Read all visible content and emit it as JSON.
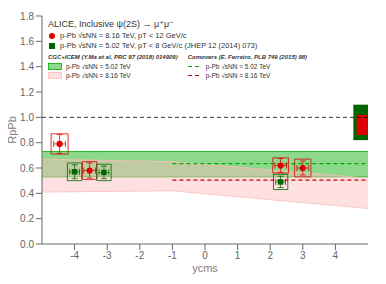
{
  "chart_data": {
    "type": "scatter",
    "title": "ALICE, Inclusive ψ(2S) → μ⁺μ⁻",
    "x_label": "ycms",
    "y_label": "RpPb",
    "xlim": [
      -5,
      5
    ],
    "ylim": [
      0,
      1.8
    ],
    "xticks": [
      -4,
      -3,
      -2,
      -1,
      0,
      1,
      2,
      3,
      4
    ],
    "yticks": [
      {
        "value": 0,
        "label": "0.0"
      },
      0.2,
      0.4,
      0.6,
      0.8,
      {
        "value": 1,
        "label": "1.0"
      },
      1.2,
      1.4,
      1.6,
      1.8
    ],
    "grid": false,
    "legend": "upper left",
    "annotations": [
      "CGC+ICEM (Y.Ma et al, PRC 97 (2018) 014909)",
      "Comovers (E. Ferreiro, PLB 749 (2015) 98)"
    ],
    "hline": 1.0,
    "series": [
      {
        "name": "p-Pb √sNN = 5.02 TeV",
        "type": "band",
        "color": "#00aa00",
        "x": [
          -5.0,
          5.0
        ],
        "lo": [
          0.53,
          0.53
        ],
        "hi": [
          0.73,
          0.73
        ]
      },
      {
        "name": "p-Pb √sNN = 8.16 TeV",
        "type": "band",
        "color": "#ffbbbb",
        "x": [
          -5.0,
          -1.0,
          5.0
        ],
        "lo": [
          0.41,
          0.42,
          0.28
        ],
        "hi": [
          0.67,
          0.65,
          0.52
        ]
      },
      {
        "name": "p-Pb √sNN = 5.02 TeV",
        "type": "line",
        "line_style": "dashed",
        "color": "#00aa00",
        "x": [
          -1.0,
          5.0
        ],
        "values": [
          0.635,
          0.635
        ]
      },
      {
        "name": "p-Pb √sNN = 8.16 TeV",
        "type": "line",
        "line_style": "dashed",
        "color": "#cc0000",
        "x": [
          -1.0,
          5.0
        ],
        "values": [
          0.505,
          0.505
        ]
      },
      {
        "name": "p-Pb √sNN = 8.16 TeV, pT < 12 GeV/c",
        "type": "scatter",
        "marker": "circle",
        "color": "#dd0000",
        "x": [
          -4.46,
          -3.54,
          2.32,
          3.0
        ],
        "values": [
          0.79,
          0.58,
          0.62,
          0.6
        ],
        "yerr": [
          0.075,
          0.06,
          0.055,
          0.055
        ],
        "xerr": [
          0.18,
          0.18,
          0.18,
          0.18
        ],
        "syst_x_lo": [
          -4.72,
          -3.76,
          2.08,
          2.75
        ],
        "syst_x_hi": [
          -4.2,
          -3.32,
          2.56,
          3.25
        ],
        "syst_y_lo": [
          0.71,
          0.51,
          0.56,
          0.53
        ],
        "syst_y_hi": [
          0.87,
          0.65,
          0.68,
          0.67
        ],
        "global_syst": {
          "x_lo": 4.65,
          "x_hi": 5.0,
          "y_lo": 0.86,
          "y_hi": 1.02
        }
      },
      {
        "name": "p-Pb √sNN = 5.02 TeV, pT < 8 GeV/c (JHEP 12 (2014) 073)",
        "type": "scatter",
        "marker": "square",
        "color": "#006600",
        "x": [
          -4.0,
          -3.1,
          2.32
        ],
        "values": [
          0.57,
          0.565,
          0.49
        ],
        "yerr": [
          0.055,
          0.05,
          0.045
        ],
        "xerr": [
          0.15,
          0.15,
          0.15
        ],
        "syst_x_lo": [
          -4.22,
          -3.32,
          2.1
        ],
        "syst_x_hi": [
          -3.78,
          -2.88,
          2.54
        ],
        "syst_y_lo": [
          0.5,
          0.5,
          0.43
        ],
        "syst_y_hi": [
          0.64,
          0.63,
          0.55
        ],
        "global_syst": {
          "x_lo": 4.55,
          "x_hi": 5.0,
          "y_lo": 0.82,
          "y_hi": 1.1
        }
      }
    ]
  }
}
